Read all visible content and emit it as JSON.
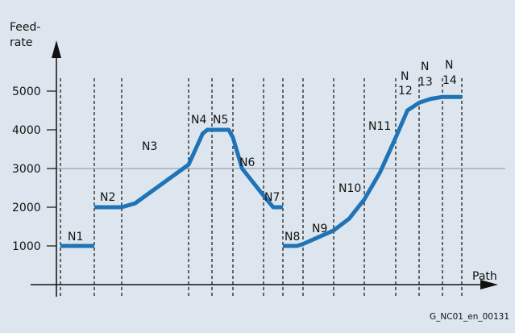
{
  "chart_data": {
    "type": "line",
    "title": "",
    "ylabel": [
      "Feed-",
      "rate"
    ],
    "xlabel": "Path",
    "yticks": [
      1000,
      2000,
      3000,
      4000,
      5000
    ],
    "ylim": [
      0,
      6000
    ],
    "reference_line": 3000,
    "grid": "vertical-dashed at block boundaries",
    "blocks": [
      {
        "label": "N1",
        "start_feedrate": 1000,
        "end_feedrate": 1000
      },
      {
        "label": "N2",
        "start_feedrate": 2000,
        "end_feedrate": 2000
      },
      {
        "label": "N3",
        "start_feedrate": 2000,
        "end_feedrate": 4000
      },
      {
        "label": "N4",
        "start_feedrate": 4000,
        "end_feedrate": 4000
      },
      {
        "label": "N5",
        "start_feedrate": 4000,
        "end_feedrate": 3000
      },
      {
        "label": "N6",
        "start_feedrate": 3000,
        "end_feedrate": 2000
      },
      {
        "label": "N7",
        "start_feedrate": 2000,
        "end_feedrate": 2000
      },
      {
        "label": "N8",
        "start_feedrate": 1000,
        "end_feedrate": 1000
      },
      {
        "label": "N9",
        "start_feedrate": 1000,
        "end_feedrate": 1400
      },
      {
        "label": "N10",
        "start_feedrate": 1400,
        "end_feedrate": 2200
      },
      {
        "label": "N11",
        "start_feedrate": 2200,
        "end_feedrate": 3800
      },
      {
        "label": "N 12",
        "start_feedrate": 3800,
        "end_feedrate": 4600
      },
      {
        "label": "N 13",
        "start_feedrate": 4600,
        "end_feedrate": 4800
      },
      {
        "label": "N 14",
        "start_feedrate": 4850,
        "end_feedrate": 4850
      }
    ],
    "profile_points": [
      [
        0,
        1000
      ],
      [
        1,
        1000
      ],
      [
        1,
        2000
      ],
      [
        2,
        2000
      ],
      [
        2.2,
        2100
      ],
      [
        3,
        3100
      ],
      [
        3.6,
        3900
      ],
      [
        3.8,
        4000
      ],
      [
        4,
        4000
      ],
      [
        4.8,
        4000
      ],
      [
        5,
        3800
      ],
      [
        5.3,
        3000
      ],
      [
        6,
        2300
      ],
      [
        6.5,
        2000
      ],
      [
        7,
        2000
      ],
      [
        7,
        1000
      ],
      [
        7.7,
        1000
      ],
      [
        8,
        1050
      ],
      [
        9,
        1400
      ],
      [
        9.5,
        1700
      ],
      [
        10,
        2200
      ],
      [
        10.5,
        2900
      ],
      [
        11,
        3800
      ],
      [
        11.5,
        4500
      ],
      [
        12,
        4700
      ],
      [
        12.5,
        4800
      ],
      [
        13,
        4850
      ],
      [
        14,
        4850
      ]
    ],
    "annotation": "G_NC01_en_00131",
    "colors": {
      "line": "#1f73b7",
      "background": "#dde6ee",
      "reference": "#9aa4ae",
      "axes": "#111111"
    }
  }
}
